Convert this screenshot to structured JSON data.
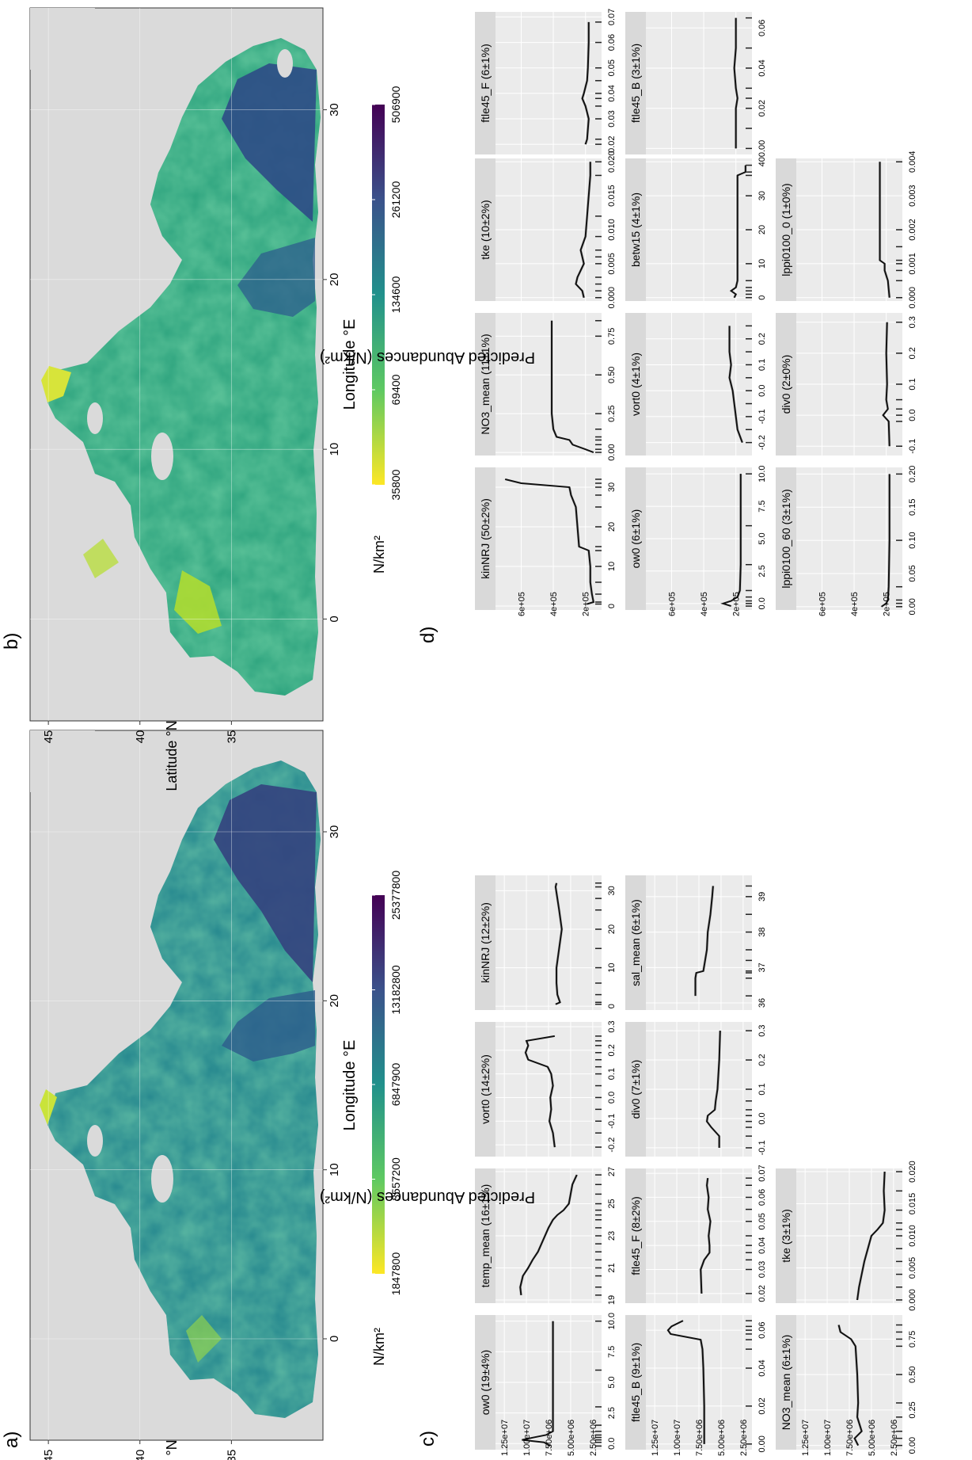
{
  "panels": {
    "a": {
      "label": "a)",
      "map": {
        "xlabel": "Longitude °E",
        "ylabel": "Latitude °N",
        "x_ticks": [
          0,
          10,
          20,
          30
        ],
        "y_ticks": [
          35,
          40,
          45
        ],
        "x_range": [
          -6,
          36
        ],
        "y_range": [
          30,
          46
        ],
        "legend_title": "N/km²",
        "colorbar_ticks": [
          "1847800",
          "3557200",
          "6847900",
          "13182800",
          "25377800"
        ],
        "colormap": "viridis"
      }
    },
    "b": {
      "label": "b)",
      "map": {
        "xlabel": "Longitude °E",
        "ylabel": "Latitude °N",
        "x_ticks": [
          0,
          10,
          20,
          30
        ],
        "y_ticks": [
          35,
          40,
          45
        ],
        "x_range": [
          -6,
          36
        ],
        "y_range": [
          30,
          46
        ],
        "legend_title": "N/km²",
        "colorbar_ticks": [
          "35800",
          "69400",
          "134600",
          "261200",
          "506900"
        ],
        "colormap": "viridis"
      }
    },
    "c": {
      "label": "c)",
      "ylabel": "Predicted Abundances (N/km²)"
    },
    "d": {
      "label": "d)",
      "ylabel": "Predicted Abundances (N/km²)"
    }
  },
  "colors": {
    "land": "#dadada",
    "plot_bg": "#ebebeb",
    "strip_bg": "#d9d9d9",
    "line": "#111111",
    "ribbon": "#a9a9a9",
    "viridis": [
      "#440154",
      "#3b528b",
      "#21918c",
      "#5ec962",
      "#fde725"
    ]
  },
  "chart_data": [
    {
      "panel": "c",
      "type": "line",
      "grid": true,
      "y_ticks": [
        "2.50e+06",
        "5.00e+06",
        "7.50e+06",
        "1.00e+07",
        "1.25e+07"
      ],
      "y_range": [
        1500000,
        13500000
      ],
      "facets": [
        {
          "title": "ow0 (19±4%)",
          "x_ticks": [
            "0.0",
            "2.5",
            "5.0",
            "7.5",
            "10.0"
          ],
          "x_range": [
            -0.5,
            10.5
          ],
          "x": [
            -0.2,
            0.1,
            0.3,
            0.5,
            0.7,
            1.0,
            1.5,
            3,
            6,
            10
          ],
          "y": [
            7300000,
            8000000,
            10500000,
            9200000,
            7800000,
            7000000,
            7000000,
            7000000,
            7000000,
            7000000
          ]
        },
        {
          "title": "temp_mean (16±1%)",
          "x_ticks": [
            "19",
            "21",
            "23",
            "25",
            "27"
          ],
          "x_range": [
            18.8,
            27.2
          ],
          "x": [
            19.3,
            19.8,
            20.5,
            21.0,
            21.5,
            22.0,
            22.5,
            23.0,
            23.5,
            24.0,
            24.3,
            24.6,
            25.0,
            25.6,
            26.2,
            26.8
          ],
          "y": [
            10600000,
            10700000,
            10400000,
            9800000,
            9300000,
            8700000,
            8300000,
            7900000,
            7500000,
            7000000,
            6500000,
            5800000,
            5200000,
            5000000,
            4800000,
            4300000
          ]
        },
        {
          "title": "vort0 (14±2%)",
          "x_ticks": [
            "-0.2",
            "-0.1",
            "0.0",
            "0.1",
            "0.2",
            "0.3"
          ],
          "x_range": [
            -0.25,
            0.32
          ],
          "x": [
            -0.21,
            -0.15,
            -0.1,
            -0.05,
            0.0,
            0.05,
            0.1,
            0.13,
            0.16,
            0.19,
            0.22,
            0.24,
            0.26
          ],
          "y": [
            6800000,
            7000000,
            7400000,
            7200000,
            7300000,
            7000000,
            7200000,
            7600000,
            9800000,
            10100000,
            9800000,
            10000000,
            6800000
          ]
        },
        {
          "title": "kinNRJ (12±2%)",
          "x_ticks": [
            "0",
            "10",
            "20",
            "30"
          ],
          "x_range": [
            -1,
            34
          ],
          "x": [
            0.5,
            1,
            3,
            6,
            10,
            15,
            20,
            25,
            28,
            31,
            32
          ],
          "y": [
            6700000,
            6200000,
            6500000,
            6600000,
            6600000,
            6300000,
            6000000,
            6300000,
            6500000,
            6700000,
            6600000
          ]
        },
        {
          "title": "ftle45_B (9±1%)",
          "x_ticks": [
            "0.00",
            "0.02",
            "0.04",
            "0.06"
          ],
          "x_range": [
            -0.003,
            0.068
          ],
          "x": [
            0.0,
            0.02,
            0.04,
            0.05,
            0.055,
            0.058,
            0.06,
            0.062,
            0.065
          ],
          "y": [
            6900000,
            6900000,
            7000000,
            7100000,
            7300000,
            10700000,
            11000000,
            10600000,
            9300000
          ]
        },
        {
          "title": "ftle45_F (8±2%)",
          "x_ticks": [
            "0.02",
            "0.03",
            "0.04",
            "0.05",
            "0.06",
            "0.07"
          ],
          "x_range": [
            0.016,
            0.072
          ],
          "x": [
            0.02,
            0.03,
            0.034,
            0.037,
            0.04,
            0.044,
            0.05,
            0.055,
            0.06,
            0.065,
            0.068
          ],
          "y": [
            7200000,
            7300000,
            6900000,
            6300000,
            6300000,
            6400000,
            6200000,
            6500000,
            6400000,
            6600000,
            6500000
          ]
        },
        {
          "title": "div0 (7±1%)",
          "x_ticks": [
            "-0.1",
            "0.0",
            "0.1",
            "0.2",
            "0.3"
          ],
          "x_range": [
            -0.13,
            0.33
          ],
          "x": [
            -0.1,
            -0.06,
            -0.03,
            -0.01,
            0.01,
            0.03,
            0.06,
            0.1,
            0.2,
            0.3
          ],
          "y": [
            5200000,
            5200000,
            6100000,
            6600000,
            6500000,
            5700000,
            5600000,
            5400000,
            5200000,
            5100000
          ]
        },
        {
          "title": "sal_mean (6±1%)",
          "x_ticks": [
            "36",
            "37",
            "38",
            "39"
          ],
          "x_range": [
            35.8,
            39.6
          ],
          "x": [
            36.2,
            36.7,
            36.85,
            36.9,
            37.2,
            37.5,
            38.0,
            38.5,
            39.0,
            39.3
          ],
          "y": [
            7900000,
            7900000,
            7800000,
            7000000,
            6800000,
            6600000,
            6500000,
            6200000,
            6000000,
            5900000
          ]
        },
        {
          "title": "NO3_mean (6±1%)",
          "x_ticks": [
            "0.00",
            "0.25",
            "0.50",
            "0.75"
          ],
          "x_range": [
            -0.03,
            0.92
          ],
          "x": [
            0.0,
            0.05,
            0.1,
            0.2,
            0.3,
            0.5,
            0.7,
            0.75,
            0.8,
            0.85
          ],
          "y": [
            6500000,
            6900000,
            6100000,
            6600000,
            6500000,
            6600000,
            6800000,
            7300000,
            8500000,
            8700000
          ]
        },
        {
          "title": "tke (3±1%)",
          "x_ticks": [
            "0.000",
            "0.005",
            "0.010",
            "0.015",
            "0.020"
          ],
          "x_range": [
            -0.0005,
            0.0205
          ],
          "x": [
            0.0,
            0.002,
            0.004,
            0.006,
            0.008,
            0.01,
            0.011,
            0.012,
            0.014,
            0.017,
            0.02
          ],
          "y": [
            6600000,
            6400000,
            6100000,
            5800000,
            5400000,
            5000000,
            4300000,
            3700000,
            3500000,
            3600000,
            3500000
          ]
        }
      ]
    },
    {
      "panel": "d",
      "type": "line",
      "grid": true,
      "y_ticks": [
        "2e+05",
        "4e+05",
        "6e+05"
      ],
      "y_range": [
        100000,
        760000
      ],
      "facets": [
        {
          "title": "kinNRJ (50±2%)",
          "x_ticks": [
            "0",
            "10",
            "20",
            "30"
          ],
          "x_range": [
            -1,
            35
          ],
          "x": [
            0.5,
            1,
            3,
            6,
            10,
            14,
            15,
            20,
            25,
            28,
            30,
            31,
            32
          ],
          "y": [
            190000,
            150000,
            160000,
            170000,
            170000,
            180000,
            240000,
            250000,
            260000,
            290000,
            300000,
            600000,
            700000
          ]
        },
        {
          "title": "NO3_mean (11±1%)",
          "x_ticks": [
            "0.00",
            "0.25",
            "0.50",
            "0.75"
          ],
          "x_range": [
            -0.02,
            0.9
          ],
          "x": [
            0.0,
            0.02,
            0.05,
            0.08,
            0.1,
            0.15,
            0.25,
            0.5,
            0.75,
            0.85
          ],
          "y": [
            150000,
            200000,
            280000,
            300000,
            380000,
            400000,
            410000,
            410000,
            410000,
            410000
          ]
        },
        {
          "title": "tke (10±2%)",
          "x_ticks": [
            "0.000",
            "0.005",
            "0.010",
            "0.015",
            "0.020"
          ],
          "x_range": [
            -0.0005,
            0.0205
          ],
          "x": [
            0.0,
            0.001,
            0.002,
            0.003,
            0.005,
            0.006,
            0.007,
            0.009,
            0.012,
            0.018,
            0.02
          ],
          "y": [
            210000,
            220000,
            260000,
            250000,
            210000,
            220000,
            230000,
            200000,
            190000,
            170000,
            170000
          ]
        },
        {
          "title": "ftle45_F (6±1%)",
          "x_ticks": [
            "0.02",
            "0.03",
            "0.04",
            "0.05",
            "0.06",
            "0.07"
          ],
          "x_range": [
            0.016,
            0.072
          ],
          "x": [
            0.02,
            0.022,
            0.03,
            0.035,
            0.038,
            0.04,
            0.045,
            0.05,
            0.06,
            0.068
          ],
          "y": [
            200000,
            190000,
            180000,
            200000,
            220000,
            210000,
            190000,
            185000,
            180000,
            180000
          ]
        },
        {
          "title": "ow0 (6±1%)",
          "x_ticks": [
            "0.0",
            "2.5",
            "5.0",
            "7.5",
            "10.0"
          ],
          "x_range": [
            -0.5,
            10.5
          ],
          "x": [
            -0.2,
            0.0,
            0.2,
            0.5,
            1.0,
            3,
            6,
            10
          ],
          "y": [
            230000,
            280000,
            230000,
            190000,
            175000,
            170000,
            170000,
            170000
          ]
        },
        {
          "title": "vort0 (4±1%)",
          "x_ticks": [
            "-0.2",
            "-0.1",
            "0.0",
            "0.1",
            "0.2"
          ],
          "x_range": [
            -0.25,
            0.3
          ],
          "x": [
            -0.2,
            -0.15,
            -0.1,
            -0.05,
            0.0,
            0.05,
            0.1,
            0.15,
            0.2,
            0.25
          ],
          "y": [
            160000,
            190000,
            200000,
            210000,
            220000,
            240000,
            230000,
            240000,
            240000,
            240000
          ]
        },
        {
          "title": "betw15 (4±1%)",
          "x_ticks": [
            "0",
            "10",
            "20",
            "30",
            "40"
          ],
          "x_range": [
            -1,
            41
          ],
          "x": [
            0,
            1,
            2,
            3,
            5,
            10,
            20,
            30,
            36,
            37,
            39
          ],
          "y": [
            210000,
            200000,
            230000,
            200000,
            190000,
            190000,
            190000,
            190000,
            190000,
            140000,
            140000
          ]
        },
        {
          "title": "ftle45_B (3±1%)",
          "x_ticks": [
            "0.00",
            "0.02",
            "0.04",
            "0.06"
          ],
          "x_range": [
            -0.003,
            0.068
          ],
          "x": [
            0.0,
            0.01,
            0.02,
            0.025,
            0.03,
            0.04,
            0.05,
            0.065
          ],
          "y": [
            200000,
            200000,
            200000,
            190000,
            200000,
            210000,
            200000,
            200000
          ]
        },
        {
          "title": "lppi0100_60 (3±1%)",
          "x_ticks": [
            "0.00",
            "0.05",
            "0.10",
            "0.15",
            "0.20"
          ],
          "x_range": [
            -0.005,
            0.21
          ],
          "x": [
            0.0,
            0.005,
            0.01,
            0.03,
            0.1,
            0.2
          ],
          "y": [
            230000,
            200000,
            190000,
            185000,
            180000,
            180000
          ]
        },
        {
          "title": "div0 (2±0%)",
          "x_ticks": [
            "-0.1",
            "0.0",
            "0.1",
            "0.2",
            "0.3"
          ],
          "x_range": [
            -0.13,
            0.33
          ],
          "x": [
            -0.1,
            -0.02,
            0.0,
            0.02,
            0.05,
            0.1,
            0.2,
            0.3
          ],
          "y": [
            180000,
            185000,
            220000,
            190000,
            200000,
            195000,
            200000,
            195000
          ]
        },
        {
          "title": "lppi0100_0 (1±0%)",
          "x_ticks": [
            "0.000",
            "0.001",
            "0.002",
            "0.003",
            "0.004"
          ],
          "x_range": [
            -0.0001,
            0.0041
          ],
          "x": [
            0.0,
            0.0005,
            0.0008,
            0.001,
            0.0011,
            0.0015,
            0.002,
            0.004
          ],
          "y": [
            180000,
            190000,
            210000,
            210000,
            240000,
            240000,
            240000,
            240000
          ]
        }
      ]
    }
  ]
}
